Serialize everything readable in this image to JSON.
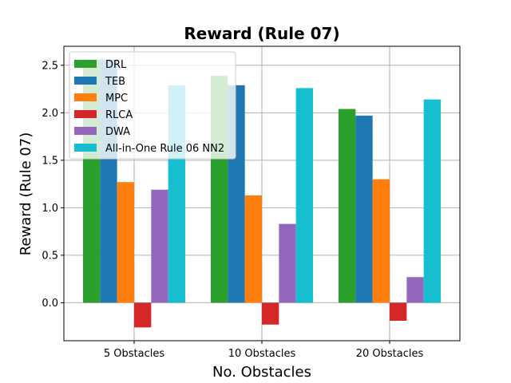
{
  "chart_data": {
    "type": "bar",
    "title": "Reward (Rule 07)",
    "xlabel": "No. Obstacles",
    "ylabel": "Reward (Rule 07)",
    "categories": [
      "5 Obstacles",
      "10 Obstacles",
      "20 Obstacles"
    ],
    "ylim": [
      -0.4,
      2.7
    ],
    "yticks": [
      "0.0",
      "0.5",
      "1.0",
      "1.5",
      "2.0",
      "2.5"
    ],
    "grid": true,
    "legend_position": "top-left",
    "series": [
      {
        "name": "DRL",
        "color": "#2ca02c",
        "values": [
          2.56,
          2.39,
          2.04
        ]
      },
      {
        "name": "TEB",
        "color": "#1f77b4",
        "values": [
          2.56,
          2.29,
          1.97
        ]
      },
      {
        "name": "MPC",
        "color": "#ff7f0e",
        "values": [
          1.27,
          1.13,
          1.3
        ]
      },
      {
        "name": "RLCA",
        "color": "#d62728",
        "values": [
          -0.26,
          -0.23,
          -0.19
        ]
      },
      {
        "name": "DWA",
        "color": "#9467bd",
        "values": [
          1.19,
          0.83,
          0.27
        ]
      },
      {
        "name": "All-in-One Rule 06 NN2",
        "color": "#17becf",
        "values": [
          2.29,
          2.26,
          2.14
        ]
      }
    ]
  }
}
